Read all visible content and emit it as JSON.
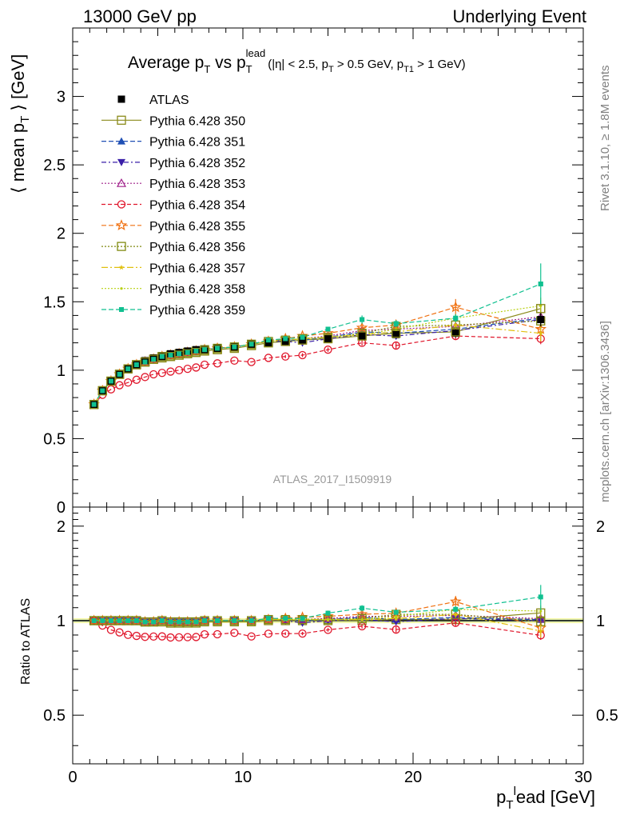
{
  "header": {
    "beam": "13000 GeV pp",
    "process": "Underlying Event"
  },
  "title": {
    "main_a": "Average p",
    "main_sub_a": "T",
    "main_b": " vs p",
    "main_sub_b": "T",
    "main_sup_b": "lead",
    "cuts_a": "(|η| < 2.5, p",
    "cuts_sub_a": "T",
    "cuts_b": " > 0.5 GeV, p",
    "cuts_sub_b": "T1",
    "cuts_c": " > 1 GeV)"
  },
  "watermark": "ATLAS_2017_I1509919",
  "side_labels": {
    "rivet": "Rivet 3.1.10, ≥ 1.8M events",
    "mcplots": "mcplots.cern.ch [arXiv:1306.3436]"
  },
  "ylabel_main": {
    "a": "⟨ mean p",
    "sub": "T",
    "b": " ⟩ [GeV]"
  },
  "ylabel_ratio": "Ratio to ATLAS",
  "xlabel": {
    "a": "p",
    "sub": "T",
    "sup": "l",
    "b": "ead [GeV]"
  },
  "chart_data": {
    "type": "scatter",
    "x": [
      1.25,
      1.75,
      2.25,
      2.75,
      3.25,
      3.75,
      4.25,
      4.75,
      5.25,
      5.75,
      6.25,
      6.75,
      7.25,
      7.75,
      8.5,
      9.5,
      10.5,
      11.5,
      12.5,
      13.5,
      15.0,
      17.0,
      19.0,
      22.5,
      27.5
    ],
    "xlim": [
      0,
      30
    ],
    "x_ticks": [
      0,
      10,
      20,
      30
    ],
    "ylim": [
      0,
      3.5
    ],
    "y_ticks": [
      0,
      0.5,
      1,
      1.5,
      2,
      2.5,
      3
    ],
    "y_tick_labels": [
      "0",
      "0.5",
      "1",
      "1.5",
      "2",
      "2.5",
      "3"
    ],
    "ratio_ylim": [
      0.35,
      2.3
    ],
    "ratio_y_ticks": [
      0.5,
      1,
      2
    ],
    "ratio_y_tick_labels": [
      "0.5",
      "1",
      "2"
    ],
    "ratio_log": true,
    "legend_position": "top-left",
    "reference": {
      "name": "ATLAS",
      "values": [
        0.75,
        0.85,
        0.92,
        0.97,
        1.01,
        1.04,
        1.07,
        1.09,
        1.1,
        1.12,
        1.13,
        1.14,
        1.15,
        1.15,
        1.16,
        1.17,
        1.19,
        1.2,
        1.21,
        1.22,
        1.23,
        1.25,
        1.26,
        1.27,
        1.37
      ],
      "errors": [
        0.005,
        0.005,
        0.005,
        0.005,
        0.005,
        0.005,
        0.005,
        0.005,
        0.005,
        0.005,
        0.005,
        0.005,
        0.005,
        0.006,
        0.006,
        0.007,
        0.008,
        0.009,
        0.01,
        0.012,
        0.015,
        0.02,
        0.025,
        0.03,
        0.05
      ]
    },
    "series": [
      {
        "name": "Pythia 6.428 350",
        "color": "#8a8a1a",
        "dash": "",
        "marker": "square-open",
        "values": [
          0.75,
          0.85,
          0.92,
          0.97,
          1.01,
          1.04,
          1.06,
          1.08,
          1.09,
          1.1,
          1.11,
          1.12,
          1.13,
          1.14,
          1.15,
          1.16,
          1.18,
          1.2,
          1.21,
          1.22,
          1.23,
          1.25,
          1.27,
          1.28,
          1.45
        ],
        "errors": [
          0.004,
          0.004,
          0.004,
          0.004,
          0.004,
          0.004,
          0.004,
          0.004,
          0.005,
          0.005,
          0.005,
          0.005,
          0.006,
          0.006,
          0.006,
          0.007,
          0.008,
          0.01,
          0.012,
          0.014,
          0.016,
          0.02,
          0.025,
          0.03,
          0.06
        ]
      },
      {
        "name": "Pythia 6.428 351",
        "color": "#1f4fb4",
        "dash": "6,3",
        "marker": "triangle-up",
        "values": [
          0.75,
          0.85,
          0.92,
          0.97,
          1.01,
          1.04,
          1.06,
          1.08,
          1.1,
          1.11,
          1.12,
          1.13,
          1.14,
          1.15,
          1.16,
          1.17,
          1.19,
          1.21,
          1.22,
          1.22,
          1.24,
          1.28,
          1.27,
          1.3,
          1.38
        ],
        "errors": [
          0.004,
          0.004,
          0.004,
          0.004,
          0.004,
          0.004,
          0.004,
          0.004,
          0.005,
          0.005,
          0.005,
          0.005,
          0.006,
          0.006,
          0.006,
          0.007,
          0.008,
          0.01,
          0.012,
          0.014,
          0.016,
          0.02,
          0.025,
          0.03,
          0.06
        ]
      },
      {
        "name": "Pythia 6.428 352",
        "color": "#3a1fa8",
        "dash": "6,3,2,3",
        "marker": "triangle-down",
        "values": [
          0.75,
          0.85,
          0.92,
          0.97,
          1.01,
          1.04,
          1.06,
          1.08,
          1.1,
          1.11,
          1.12,
          1.13,
          1.14,
          1.15,
          1.16,
          1.17,
          1.19,
          1.21,
          1.21,
          1.2,
          1.23,
          1.26,
          1.25,
          1.29,
          1.37
        ],
        "errors": [
          0.004,
          0.004,
          0.004,
          0.004,
          0.004,
          0.004,
          0.004,
          0.004,
          0.005,
          0.005,
          0.005,
          0.005,
          0.006,
          0.006,
          0.006,
          0.007,
          0.008,
          0.01,
          0.012,
          0.014,
          0.016,
          0.02,
          0.025,
          0.03,
          0.06
        ]
      },
      {
        "name": "Pythia 6.428 353",
        "color": "#a0208a",
        "dash": "2,2",
        "marker": "triangle-open",
        "values": [
          0.75,
          0.85,
          0.92,
          0.97,
          1.01,
          1.04,
          1.06,
          1.08,
          1.1,
          1.11,
          1.12,
          1.13,
          1.14,
          1.15,
          1.16,
          1.17,
          1.19,
          1.21,
          1.22,
          1.23,
          1.25,
          1.29,
          1.3,
          1.32,
          1.39
        ],
        "errors": [
          0.004,
          0.004,
          0.004,
          0.004,
          0.004,
          0.004,
          0.004,
          0.004,
          0.005,
          0.005,
          0.005,
          0.005,
          0.006,
          0.006,
          0.006,
          0.007,
          0.008,
          0.01,
          0.012,
          0.014,
          0.016,
          0.02,
          0.025,
          0.03,
          0.06
        ]
      },
      {
        "name": "Pythia 6.428 354",
        "color": "#e0152a",
        "dash": "5,3",
        "marker": "circle-open",
        "values": [
          0.75,
          0.82,
          0.86,
          0.89,
          0.91,
          0.93,
          0.95,
          0.97,
          0.98,
          0.99,
          1.0,
          1.01,
          1.02,
          1.04,
          1.05,
          1.07,
          1.06,
          1.09,
          1.1,
          1.11,
          1.15,
          1.2,
          1.18,
          1.25,
          1.23
        ],
        "errors": [
          0.004,
          0.004,
          0.004,
          0.004,
          0.004,
          0.004,
          0.004,
          0.004,
          0.005,
          0.005,
          0.005,
          0.005,
          0.006,
          0.006,
          0.006,
          0.007,
          0.008,
          0.01,
          0.012,
          0.014,
          0.016,
          0.02,
          0.025,
          0.03,
          0.04
        ]
      },
      {
        "name": "Pythia 6.428 355",
        "color": "#f07010",
        "dash": "6,3",
        "marker": "star-open",
        "values": [
          0.75,
          0.85,
          0.92,
          0.97,
          1.01,
          1.04,
          1.06,
          1.08,
          1.1,
          1.11,
          1.12,
          1.13,
          1.14,
          1.15,
          1.16,
          1.17,
          1.19,
          1.21,
          1.23,
          1.25,
          1.27,
          1.31,
          1.33,
          1.46,
          1.3
        ],
        "errors": [
          0.004,
          0.004,
          0.004,
          0.004,
          0.004,
          0.004,
          0.004,
          0.004,
          0.005,
          0.005,
          0.005,
          0.005,
          0.006,
          0.006,
          0.006,
          0.007,
          0.008,
          0.01,
          0.012,
          0.014,
          0.016,
          0.02,
          0.025,
          0.06,
          0.06
        ]
      },
      {
        "name": "Pythia 6.428 356",
        "color": "#808a10",
        "dash": "2,2",
        "marker": "square-open",
        "values": [
          0.75,
          0.85,
          0.92,
          0.97,
          1.01,
          1.04,
          1.06,
          1.08,
          1.1,
          1.11,
          1.12,
          1.13,
          1.14,
          1.15,
          1.16,
          1.17,
          1.19,
          1.21,
          1.22,
          1.23,
          1.24,
          1.27,
          1.32,
          1.33,
          1.36
        ],
        "errors": [
          0.004,
          0.004,
          0.004,
          0.004,
          0.004,
          0.004,
          0.004,
          0.004,
          0.005,
          0.005,
          0.005,
          0.005,
          0.006,
          0.006,
          0.006,
          0.007,
          0.008,
          0.01,
          0.012,
          0.014,
          0.016,
          0.02,
          0.025,
          0.03,
          0.06
        ]
      },
      {
        "name": "Pythia 6.428 357",
        "color": "#e0c010",
        "dash": "8,3,2,3",
        "marker": "star-small",
        "values": [
          0.75,
          0.85,
          0.92,
          0.97,
          1.01,
          1.04,
          1.06,
          1.08,
          1.1,
          1.11,
          1.12,
          1.13,
          1.14,
          1.15,
          1.16,
          1.17,
          1.19,
          1.21,
          1.22,
          1.23,
          1.24,
          1.26,
          1.28,
          1.33,
          1.27
        ],
        "errors": [
          0.004,
          0.004,
          0.004,
          0.004,
          0.004,
          0.004,
          0.004,
          0.004,
          0.005,
          0.005,
          0.005,
          0.005,
          0.006,
          0.006,
          0.006,
          0.007,
          0.008,
          0.01,
          0.012,
          0.014,
          0.016,
          0.02,
          0.025,
          0.03,
          0.06
        ]
      },
      {
        "name": "Pythia 6.428 358",
        "color": "#b8d010",
        "dash": "2,2",
        "marker": "dot",
        "values": [
          0.75,
          0.85,
          0.92,
          0.97,
          1.01,
          1.04,
          1.06,
          1.08,
          1.1,
          1.11,
          1.12,
          1.13,
          1.14,
          1.15,
          1.16,
          1.17,
          1.19,
          1.21,
          1.22,
          1.23,
          1.24,
          1.26,
          1.3,
          1.38,
          1.47
        ],
        "errors": [
          0.004,
          0.004,
          0.004,
          0.004,
          0.004,
          0.004,
          0.004,
          0.004,
          0.005,
          0.005,
          0.005,
          0.005,
          0.006,
          0.006,
          0.006,
          0.007,
          0.008,
          0.01,
          0.012,
          0.014,
          0.016,
          0.02,
          0.025,
          0.03,
          0.06
        ]
      },
      {
        "name": "Pythia 6.428 359",
        "color": "#10c090",
        "dash": "6,3",
        "marker": "square-filled",
        "values": [
          0.75,
          0.85,
          0.92,
          0.97,
          1.01,
          1.04,
          1.06,
          1.08,
          1.1,
          1.11,
          1.12,
          1.13,
          1.14,
          1.15,
          1.16,
          1.17,
          1.19,
          1.22,
          1.23,
          1.24,
          1.3,
          1.37,
          1.34,
          1.38,
          1.63
        ],
        "errors": [
          0.004,
          0.004,
          0.004,
          0.004,
          0.004,
          0.004,
          0.004,
          0.004,
          0.005,
          0.005,
          0.005,
          0.005,
          0.006,
          0.006,
          0.006,
          0.007,
          0.008,
          0.01,
          0.012,
          0.014,
          0.016,
          0.03,
          0.025,
          0.03,
          0.15
        ]
      }
    ]
  }
}
